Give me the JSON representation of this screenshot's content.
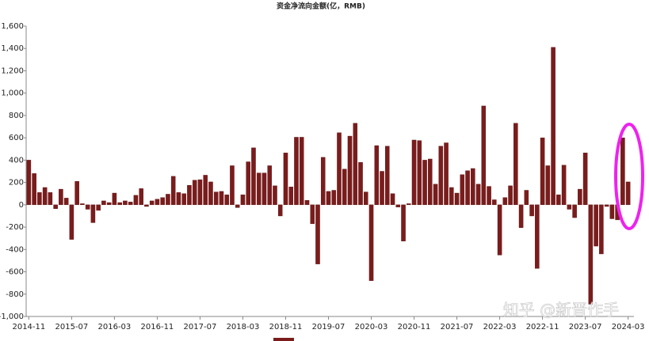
{
  "chart_data": {
    "type": "bar",
    "title": "资金净流向金额(亿，RMB)",
    "categories": [
      "2014-11",
      null,
      null,
      null,
      null,
      null,
      null,
      null,
      "2015-07",
      null,
      null,
      null,
      null,
      null,
      null,
      null,
      "2016-03",
      null,
      null,
      null,
      null,
      null,
      null,
      null,
      "2016-11",
      null,
      null,
      null,
      null,
      null,
      null,
      null,
      "2017-07",
      null,
      null,
      null,
      null,
      null,
      null,
      null,
      "2018-03",
      null,
      null,
      null,
      null,
      null,
      null,
      null,
      "2018-11",
      null,
      null,
      null,
      null,
      null,
      null,
      null,
      "2019-07",
      null,
      null,
      null,
      null,
      null,
      null,
      null,
      "2020-03",
      null,
      null,
      null,
      null,
      null,
      null,
      null,
      "2020-11",
      null,
      null,
      null,
      null,
      null,
      null,
      null,
      "2021-07",
      null,
      null,
      null,
      null,
      null,
      null,
      null,
      "2022-03",
      null,
      null,
      null,
      null,
      null,
      null,
      null,
      "2022-11",
      null,
      null,
      null,
      null,
      null,
      null,
      null,
      "2023-07",
      null,
      null,
      null,
      null,
      null,
      null,
      null,
      "2024-03"
    ],
    "values": [
      400,
      280,
      110,
      155,
      110,
      -35,
      140,
      60,
      -310,
      210,
      10,
      -40,
      -160,
      -50,
      35,
      20,
      105,
      20,
      35,
      25,
      85,
      145,
      -15,
      35,
      50,
      65,
      95,
      255,
      110,
      100,
      175,
      220,
      225,
      265,
      205,
      115,
      120,
      90,
      350,
      -25,
      90,
      385,
      510,
      285,
      285,
      350,
      170,
      -100,
      465,
      160,
      605,
      605,
      40,
      -170,
      -530,
      425,
      120,
      130,
      645,
      320,
      615,
      730,
      380,
      115,
      -680,
      530,
      300,
      525,
      100,
      -20,
      -325,
      10,
      580,
      575,
      400,
      410,
      185,
      525,
      555,
      155,
      105,
      270,
      305,
      325,
      185,
      885,
      165,
      45,
      -450,
      65,
      170,
      730,
      -205,
      130,
      -100,
      -570,
      600,
      350,
      1410,
      90,
      355,
      -40,
      -115,
      140,
      465,
      -890,
      -370,
      -440,
      -15,
      -125,
      -135,
      600,
      205
    ],
    "color": "#7b1c1c",
    "ylim": [
      -1000,
      1600
    ],
    "yticks": [
      {
        "value": -1000,
        "label": "-1,000"
      },
      -800,
      -600,
      -400,
      -200,
      0,
      200,
      400,
      600,
      800,
      {
        "value": 1000,
        "label": "1,000"
      },
      {
        "value": 1200,
        "label": "1,200"
      },
      {
        "value": 1400,
        "label": "1,400"
      },
      {
        "value": 1600,
        "label": "1,600"
      }
    ],
    "grid": false,
    "watermark": "知乎 @新晋作手"
  }
}
